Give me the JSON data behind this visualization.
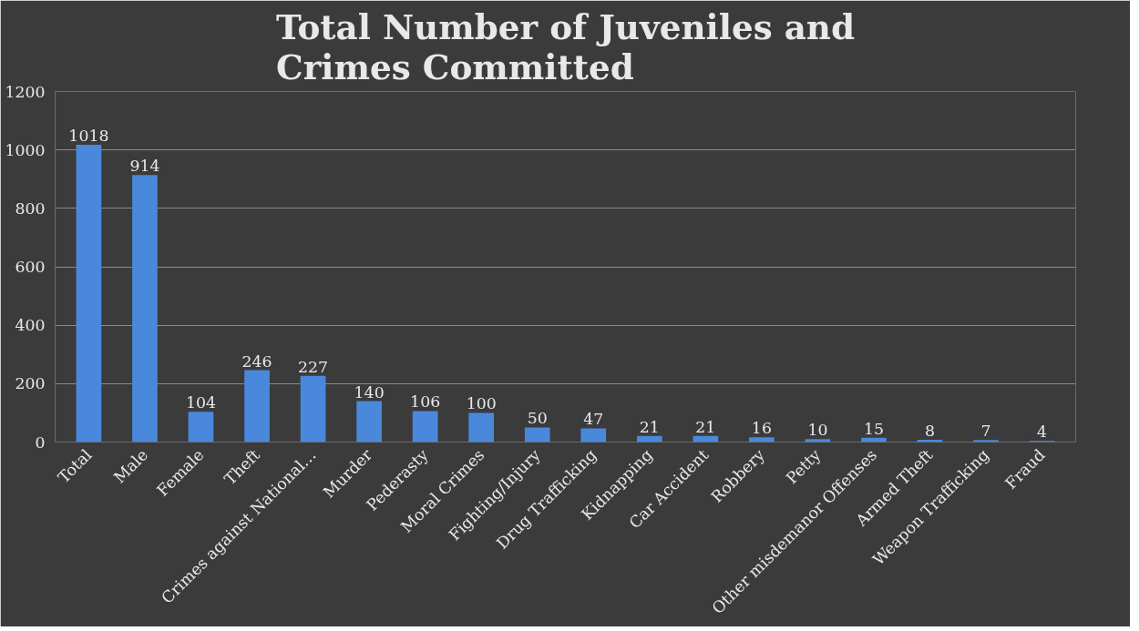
{
  "chart_data": {
    "type": "bar",
    "title": "Total Number of Juveniles and\nCrimes Committed",
    "categories": [
      "Total",
      "Male",
      "Female",
      "Theft",
      "Crimes against National…",
      "Murder",
      "Pederasty",
      "Moral Crimes",
      "Fighting/Injury",
      "Drug Trafficking",
      "Kidnapping",
      "Car Accident",
      "Robbery",
      "Petty",
      "Other misdemanor Offenses",
      "Armed Theft",
      "Weapon Trafficking",
      "Fraud"
    ],
    "values": [
      1018,
      914,
      104,
      246,
      227,
      140,
      106,
      100,
      50,
      47,
      21,
      21,
      16,
      10,
      15,
      8,
      7,
      4
    ],
    "color": "#4a88dc",
    "ylim": [
      0,
      1200
    ],
    "yticks": [
      0,
      200,
      400,
      600,
      800,
      1000,
      1200
    ],
    "grid": "y",
    "data_labels": true
  }
}
